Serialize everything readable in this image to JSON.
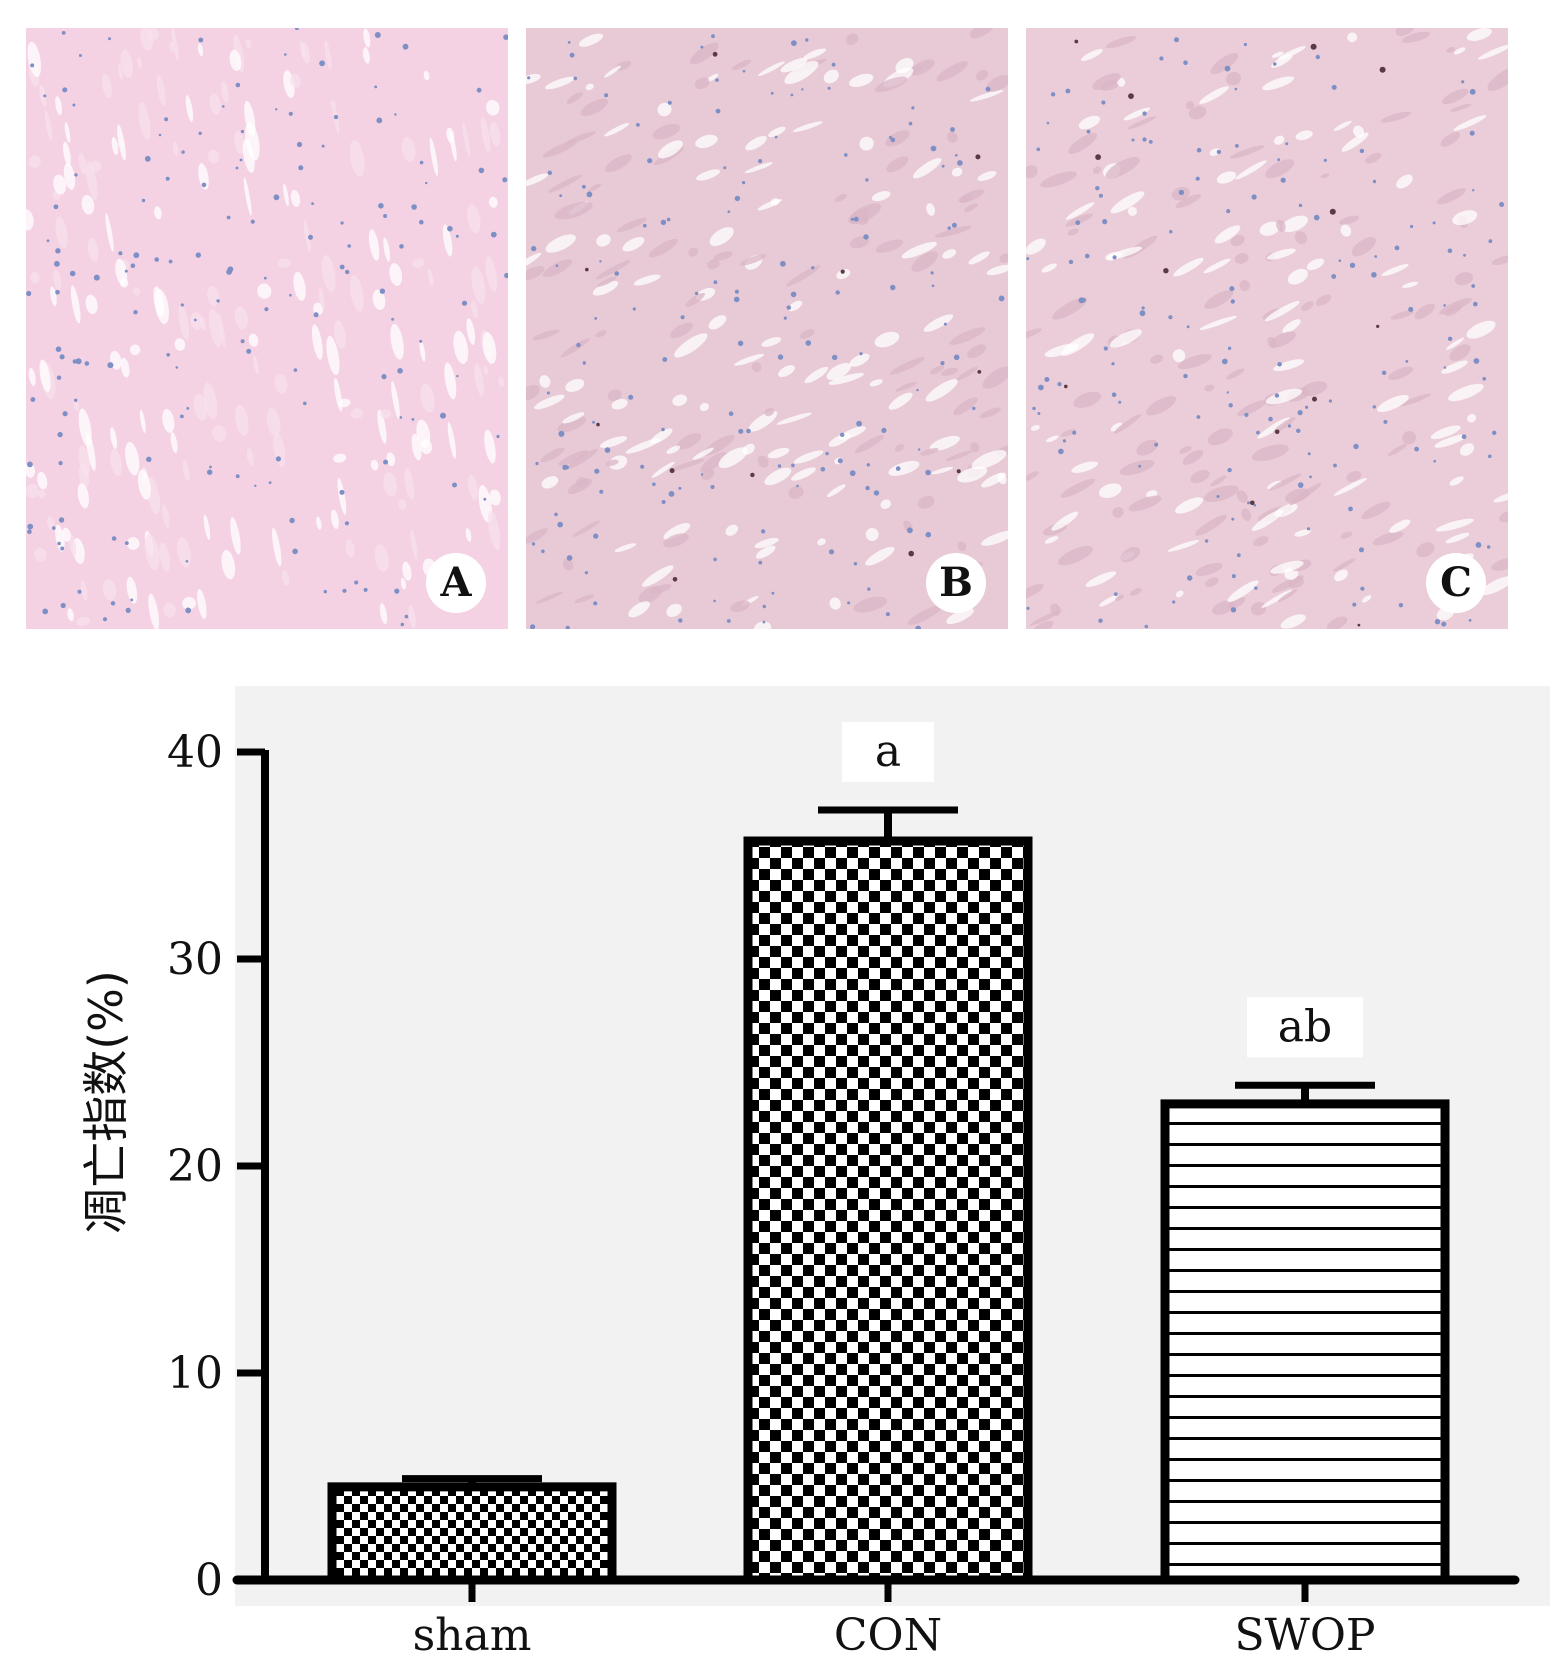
{
  "panels": [
    {
      "label": "A",
      "tint": "#f4d2e3"
    },
    {
      "label": "B",
      "tint": "#e8c9d6"
    },
    {
      "label": "C",
      "tint": "#ebcdd9"
    }
  ],
  "chart_data": {
    "type": "bar",
    "categories": [
      "sham",
      "CON",
      "SWOP"
    ],
    "values": [
      4.5,
      35.7,
      23.0
    ],
    "errors": [
      0.4,
      1.5,
      0.9
    ],
    "annotations": [
      "",
      "a",
      "ab"
    ],
    "patterns": [
      "fine-checker",
      "checker",
      "horizontal-lines"
    ],
    "ylabel": "凋亡指数(%)",
    "ylim": [
      0,
      40
    ],
    "yticks": [
      "0",
      "10",
      "20",
      "30",
      "40"
    ],
    "grid": false,
    "colors": {
      "bar_stroke": "#000000",
      "background": "#f2f2f2"
    }
  }
}
